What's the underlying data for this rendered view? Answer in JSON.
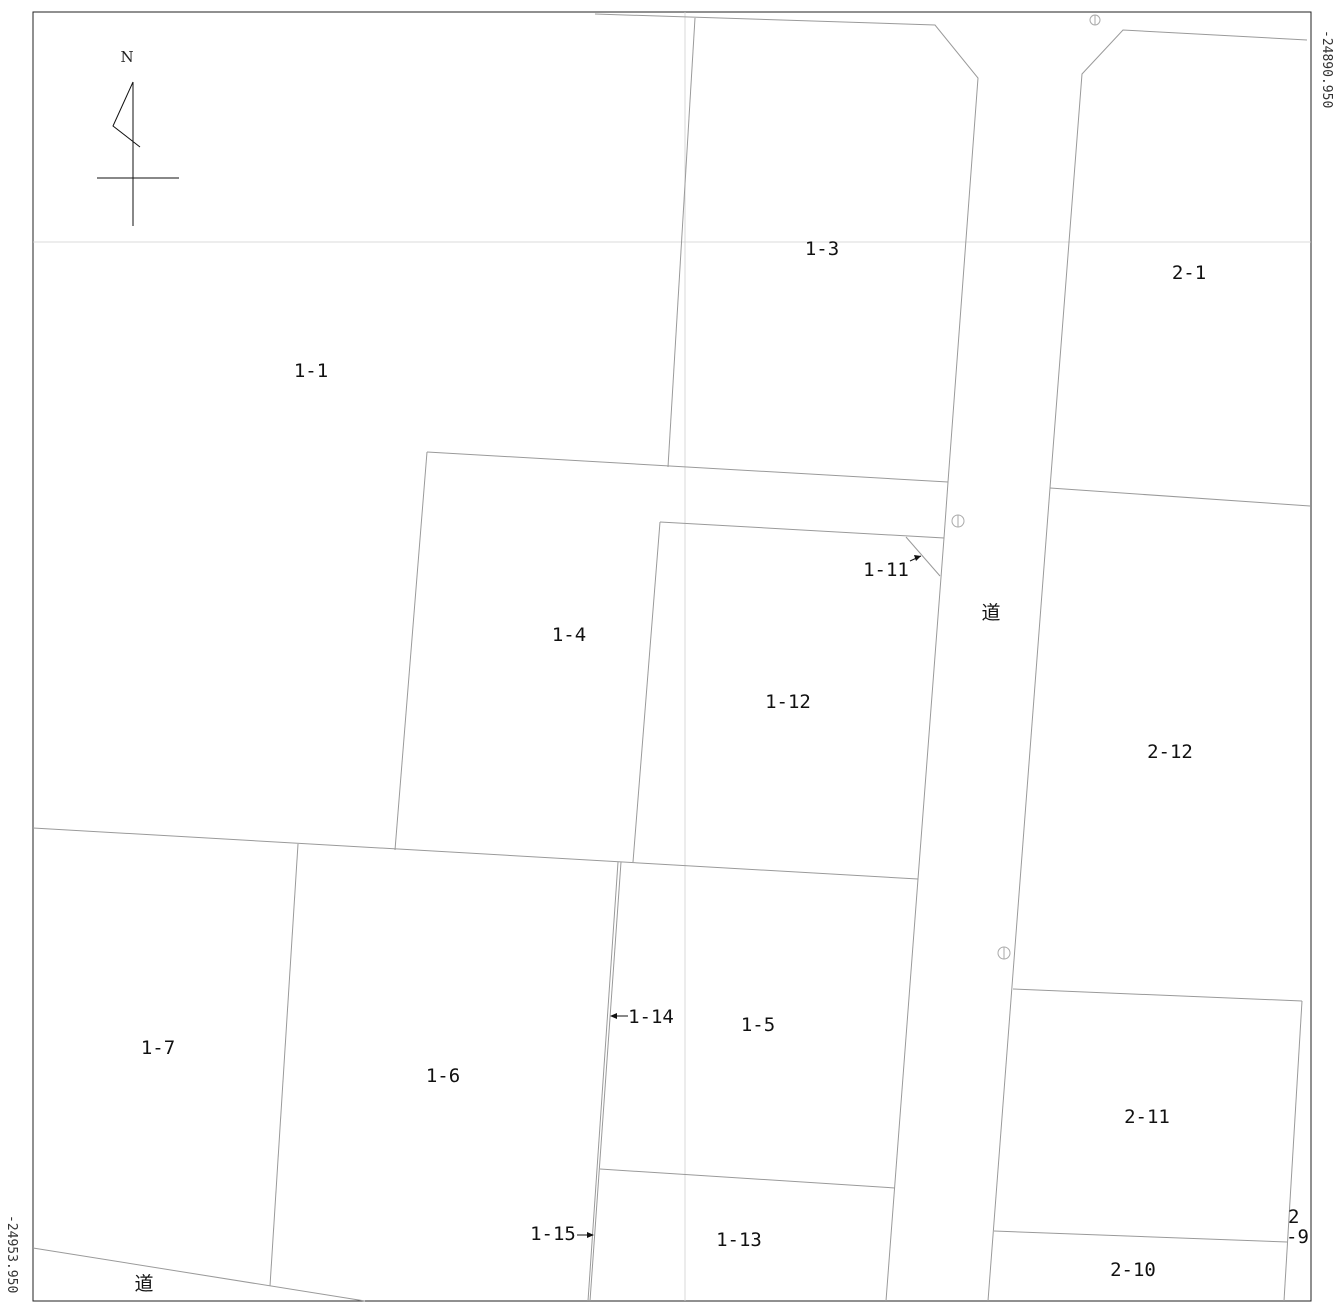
{
  "map": {
    "north_label": "N",
    "coordinates": {
      "right_top": "-24890.950",
      "left_bottom": "-24953.950"
    },
    "parcels": [
      {
        "id": "p-1-1",
        "label": "1-1"
      },
      {
        "id": "p-1-3",
        "label": "1-3"
      },
      {
        "id": "p-2-1",
        "label": "2-1"
      },
      {
        "id": "p-1-4",
        "label": "1-4"
      },
      {
        "id": "p-1-11",
        "label": "1-11"
      },
      {
        "id": "p-1-12",
        "label": "1-12"
      },
      {
        "id": "p-2-12",
        "label": "2-12"
      },
      {
        "id": "p-1-7",
        "label": "1-7"
      },
      {
        "id": "p-1-6",
        "label": "1-6"
      },
      {
        "id": "p-1-14",
        "label": "1-14"
      },
      {
        "id": "p-1-5",
        "label": "1-5"
      },
      {
        "id": "p-2-11",
        "label": "2-11"
      },
      {
        "id": "p-1-15",
        "label": "1-15"
      },
      {
        "id": "p-1-13",
        "label": "1-13"
      },
      {
        "id": "p-2-10",
        "label": "2-10"
      },
      {
        "id": "p-2-9",
        "label": "2\n-9"
      }
    ],
    "road_labels": [
      "道",
      "道"
    ]
  }
}
